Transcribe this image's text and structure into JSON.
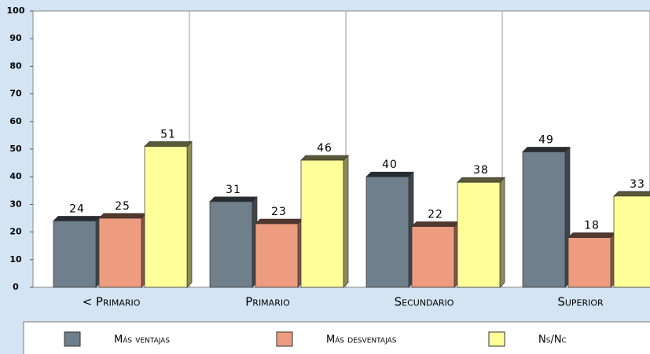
{
  "chart_data": {
    "type": "bar",
    "categories": [
      "< Primario",
      "Primario",
      "Secundario",
      "Superior"
    ],
    "series": [
      {
        "name": "Más ventajas",
        "color": "#6f7f8b",
        "values": [
          24,
          31,
          40,
          49
        ]
      },
      {
        "name": "Más desventajas",
        "color": "#ee9c80",
        "values": [
          25,
          23,
          22,
          18
        ]
      },
      {
        "name": "Ns/Nc",
        "color": "#ffff99",
        "values": [
          51,
          46,
          38,
          33
        ]
      }
    ],
    "ylim": [
      0,
      100
    ],
    "yticks": [
      0,
      10,
      20,
      30,
      40,
      50,
      60,
      70,
      80,
      90,
      100
    ],
    "grid": false,
    "legend": "bottom"
  }
}
